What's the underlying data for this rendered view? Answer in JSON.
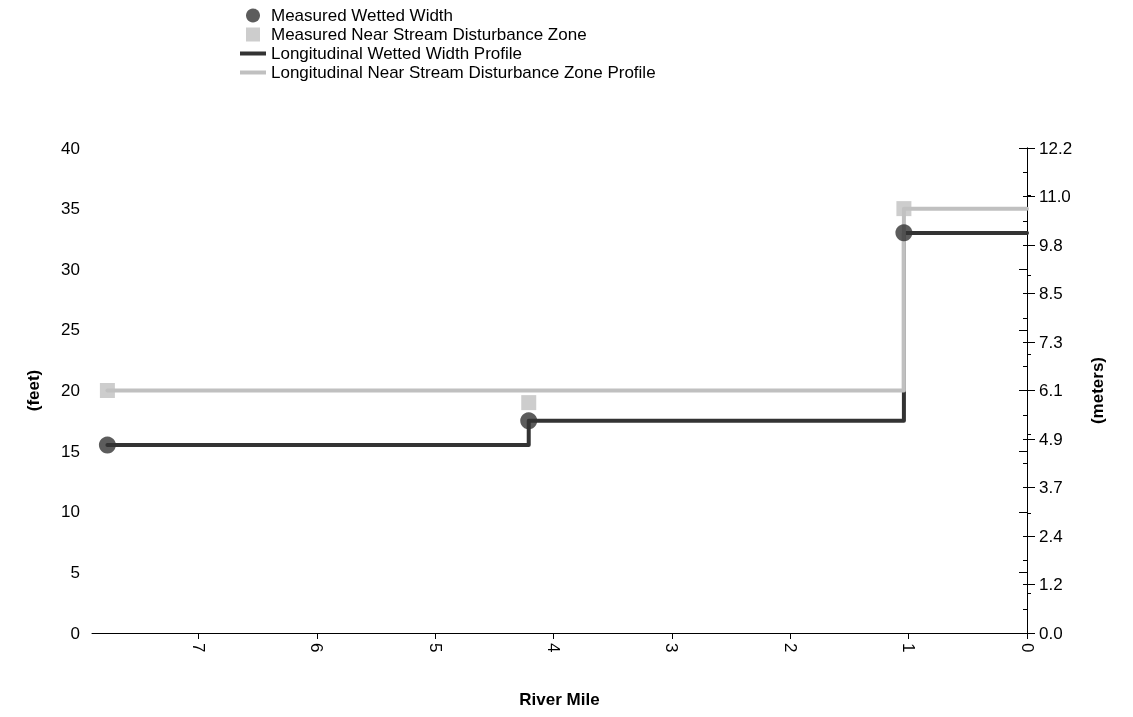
{
  "chart_data": {
    "type": "step",
    "xlabel": "River Mile",
    "ylabel": "(feet)",
    "y2label": "(meters)",
    "xlim": [
      7.9,
      0
    ],
    "xticks": [
      7,
      6,
      5,
      4,
      3,
      2,
      1,
      0
    ],
    "ylim": [
      0,
      40
    ],
    "yticks": [
      0,
      5,
      10,
      15,
      20,
      25,
      30,
      35,
      40
    ],
    "y2lim": [
      0,
      12.192
    ],
    "y2ticks": [
      {
        "value": 0,
        "label": "0.0"
      },
      {
        "value": 1.2192,
        "label": "1.2"
      },
      {
        "value": 2.4384,
        "label": "2.4"
      },
      {
        "value": 3.6576,
        "label": "3.7"
      },
      {
        "value": 4.8768,
        "label": "4.9"
      },
      {
        "value": 6.096,
        "label": "6.1"
      },
      {
        "value": 7.3152,
        "label": "7.3"
      },
      {
        "value": 8.5344,
        "label": "8.5"
      },
      {
        "value": 9.7536,
        "label": "9.8"
      },
      {
        "value": 10.9728,
        "label": "11.0"
      },
      {
        "value": 12.192,
        "label": "12.2"
      }
    ],
    "grid": false,
    "legend": "top",
    "series": [
      {
        "name": "Measured Wetted Width",
        "type": "scatter",
        "marker": "circle",
        "color": "#333333",
        "x": [
          7.77,
          4.21,
          1.04
        ],
        "values": [
          15.5,
          17.5,
          33
        ]
      },
      {
        "name": "Measured Near Stream Disturbance Zone",
        "type": "scatter",
        "marker": "square",
        "color": "#c0c0c0",
        "x": [
          7.77,
          4.21,
          1.04
        ],
        "values": [
          20,
          19,
          35
        ]
      },
      {
        "name": "Longitudinal Wetted Width Profile",
        "marker": "none",
        "line_style": "solid",
        "color": "#333333",
        "x": [
          7.77,
          4.21,
          1.04,
          0
        ],
        "values": [
          15.5,
          17.5,
          33,
          33
        ]
      },
      {
        "name": "Longitudinal Near Stream Disturbance Zone Profile",
        "marker": "none",
        "line_style": "solid",
        "color": "#c0c0c0",
        "x": [
          7.77,
          1.04,
          0
        ],
        "values": [
          20,
          35,
          35
        ]
      }
    ]
  }
}
